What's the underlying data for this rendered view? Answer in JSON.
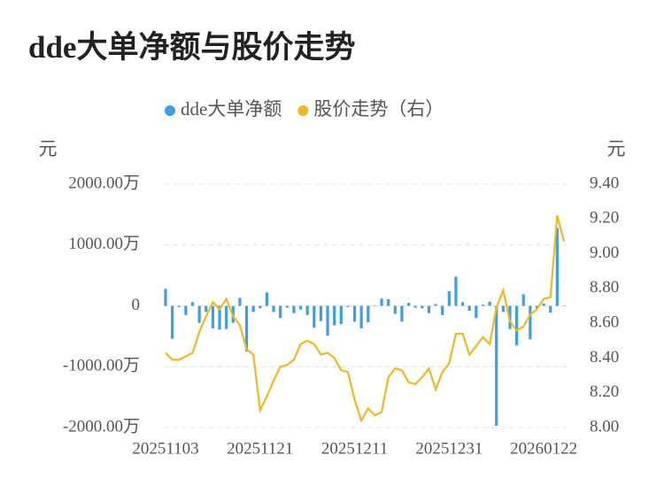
{
  "chart_data": {
    "type": "bar-line",
    "title": "dde大单净额与股价走势",
    "y_axis_label": "元",
    "y2_axis_label": "元",
    "categories": [
      "20251103",
      null,
      null,
      null,
      null,
      null,
      null,
      null,
      null,
      null,
      null,
      null,
      null,
      null,
      "20251121",
      null,
      null,
      null,
      null,
      null,
      null,
      null,
      null,
      null,
      null,
      null,
      null,
      null,
      "20251211",
      null,
      null,
      null,
      null,
      null,
      null,
      null,
      null,
      null,
      null,
      null,
      null,
      null,
      "20251231",
      null,
      null,
      null,
      null,
      null,
      null,
      null,
      null,
      null,
      null,
      null,
      null,
      null,
      "20260122",
      null,
      null,
      null
    ],
    "ylim": [
      -2000,
      2000
    ],
    "yticks": [
      {
        "value": -2000,
        "label": "-2000.00万"
      },
      {
        "value": -1000,
        "label": "-1000.00万"
      },
      0,
      {
        "value": 1000,
        "label": "1000.00万"
      },
      {
        "value": 2000,
        "label": "2000.00万"
      }
    ],
    "y2lim": [
      8.0,
      9.4
    ],
    "y2ticks": [
      {
        "value": 8.0,
        "label": "8.00"
      },
      {
        "value": 8.2,
        "label": "8.20"
      },
      {
        "value": 8.4,
        "label": "8.40"
      },
      {
        "value": 8.6,
        "label": "8.60"
      },
      {
        "value": 8.8,
        "label": "8.80"
      },
      {
        "value": 9.0,
        "label": "9.00"
      },
      {
        "value": 9.2,
        "label": "9.20"
      },
      {
        "value": 9.4,
        "label": "9.40"
      }
    ],
    "grid": true,
    "series": [
      {
        "name": "dde大单净额",
        "type": "bar",
        "color": "#3a9fe6",
        "values": [
          280,
          -540,
          -20,
          -150,
          60,
          -280,
          -100,
          -370,
          -390,
          -380,
          -280,
          130,
          -750,
          -100,
          -40,
          220,
          -100,
          -200,
          -30,
          -120,
          -60,
          -150,
          -360,
          -250,
          -490,
          -320,
          -300,
          -20,
          -260,
          -370,
          -270,
          10,
          120,
          110,
          -130,
          -260,
          50,
          -30,
          -40,
          -120,
          30,
          -150,
          240,
          480,
          60,
          -80,
          -200,
          20,
          70,
          -1970,
          -100,
          -380,
          -650,
          190,
          -550,
          -40,
          40,
          -110,
          1280,
          0
        ]
      },
      {
        "name": "股价走势（右）",
        "type": "line",
        "axis": "y2",
        "color": "#f5b81c",
        "values": [
          8.43,
          8.39,
          8.39,
          8.41,
          8.43,
          8.55,
          8.64,
          8.72,
          8.68,
          8.74,
          8.64,
          8.59,
          8.45,
          8.42,
          8.1,
          8.18,
          8.27,
          8.35,
          8.36,
          8.39,
          8.48,
          8.5,
          8.48,
          8.42,
          8.43,
          8.4,
          8.33,
          8.32,
          8.16,
          8.04,
          8.11,
          8.07,
          8.09,
          8.29,
          8.34,
          8.33,
          8.26,
          8.25,
          8.29,
          8.34,
          8.22,
          8.32,
          8.37,
          8.54,
          8.54,
          8.42,
          8.47,
          8.52,
          8.48,
          8.69,
          8.79,
          8.61,
          8.56,
          8.58,
          8.65,
          8.68,
          8.74,
          8.75,
          9.22,
          9.07
        ]
      }
    ]
  }
}
